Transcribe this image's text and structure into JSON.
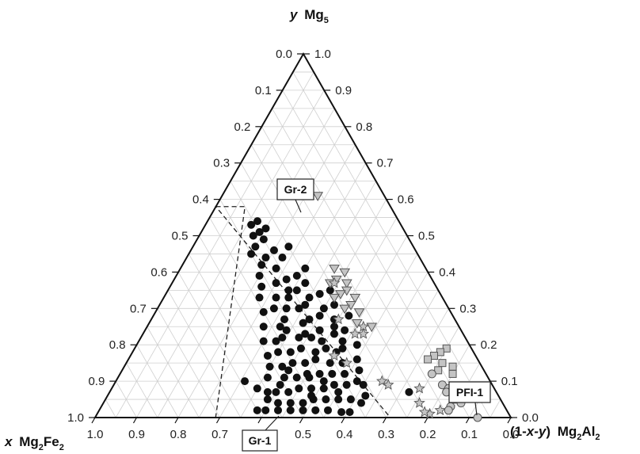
{
  "chart_data": {
    "type": "scatter",
    "subtype": "ternary",
    "axes": {
      "top": {
        "var": "y",
        "label": "Mg",
        "sub": "5"
      },
      "left": {
        "var": "x",
        "label": "Mg",
        "sub1": "2",
        "label2": "Fe",
        "sub2": "2"
      },
      "right": {
        "prefix": "(1-",
        "var": "x-y",
        "suffix": ") ",
        "label": "Mg",
        "sub1": "2",
        "label2": "Al",
        "sub2": "2"
      }
    },
    "ticks": [
      "0.0",
      "0.1",
      "0.2",
      "0.3",
      "0.4",
      "0.5",
      "0.6",
      "0.7",
      "0.8",
      "0.9",
      "1.0"
    ],
    "grid": true,
    "annotations": [
      {
        "text": "Gr-2"
      },
      {
        "text": "Gr-1"
      },
      {
        "text": "PFI-1"
      }
    ],
    "colors": {
      "group_black": "#111111",
      "group_gray_fill": "#c4c4c4",
      "group_gray_stroke": "#555555",
      "grid": "#cfcfcf",
      "frame": "#111111"
    },
    "series": [
      {
        "marker": "circle-filled",
        "color": "#111111",
        "points": [
          {
            "x": 0.36,
            "y": 0.53
          },
          {
            "x": 0.33,
            "y": 0.52
          },
          {
            "x": 0.34,
            "y": 0.54
          },
          {
            "x": 0.37,
            "y": 0.5
          },
          {
            "x": 0.35,
            "y": 0.49
          },
          {
            "x": 0.38,
            "y": 0.47
          },
          {
            "x": 0.3,
            "y": 0.47
          },
          {
            "x": 0.34,
            "y": 0.46
          },
          {
            "x": 0.37,
            "y": 0.44
          },
          {
            "x": 0.33,
            "y": 0.44
          },
          {
            "x": 0.39,
            "y": 0.42
          },
          {
            "x": 0.29,
            "y": 0.41
          },
          {
            "x": 0.36,
            "y": 0.41
          },
          {
            "x": 0.32,
            "y": 0.39
          },
          {
            "x": 0.35,
            "y": 0.38
          },
          {
            "x": 0.31,
            "y": 0.37
          },
          {
            "x": 0.38,
            "y": 0.37
          },
          {
            "x": 0.42,
            "y": 0.36
          },
          {
            "x": 0.26,
            "y": 0.35
          },
          {
            "x": 0.34,
            "y": 0.35
          },
          {
            "x": 0.29,
            "y": 0.34
          },
          {
            "x": 0.32,
            "y": 0.33
          },
          {
            "x": 0.37,
            "y": 0.33
          },
          {
            "x": 0.4,
            "y": 0.33
          },
          {
            "x": 0.44,
            "y": 0.33
          },
          {
            "x": 0.27,
            "y": 0.31
          },
          {
            "x": 0.3,
            "y": 0.3
          },
          {
            "x": 0.34,
            "y": 0.31
          },
          {
            "x": 0.36,
            "y": 0.3
          },
          {
            "x": 0.39,
            "y": 0.3
          },
          {
            "x": 0.42,
            "y": 0.3
          },
          {
            "x": 0.45,
            "y": 0.29
          },
          {
            "x": 0.25,
            "y": 0.28
          },
          {
            "x": 0.29,
            "y": 0.27
          },
          {
            "x": 0.32,
            "y": 0.28
          },
          {
            "x": 0.35,
            "y": 0.27
          },
          {
            "x": 0.37,
            "y": 0.26
          },
          {
            "x": 0.41,
            "y": 0.27
          },
          {
            "x": 0.43,
            "y": 0.25
          },
          {
            "x": 0.47,
            "y": 0.25
          },
          {
            "x": 0.28,
            "y": 0.24
          },
          {
            "x": 0.31,
            "y": 0.23
          },
          {
            "x": 0.34,
            "y": 0.24
          },
          {
            "x": 0.38,
            "y": 0.23
          },
          {
            "x": 0.4,
            "y": 0.22
          },
          {
            "x": 0.44,
            "y": 0.22
          },
          {
            "x": 0.46,
            "y": 0.21
          },
          {
            "x": 0.49,
            "y": 0.21
          },
          {
            "x": 0.27,
            "y": 0.2
          },
          {
            "x": 0.31,
            "y": 0.19
          },
          {
            "x": 0.35,
            "y": 0.19
          },
          {
            "x": 0.38,
            "y": 0.18
          },
          {
            "x": 0.41,
            "y": 0.19
          },
          {
            "x": 0.44,
            "y": 0.18
          },
          {
            "x": 0.47,
            "y": 0.18
          },
          {
            "x": 0.5,
            "y": 0.17
          },
          {
            "x": 0.29,
            "y": 0.16
          },
          {
            "x": 0.33,
            "y": 0.15
          },
          {
            "x": 0.36,
            "y": 0.15
          },
          {
            "x": 0.39,
            "y": 0.16
          },
          {
            "x": 0.42,
            "y": 0.15
          },
          {
            "x": 0.45,
            "y": 0.15
          },
          {
            "x": 0.48,
            "y": 0.14
          },
          {
            "x": 0.51,
            "y": 0.14
          },
          {
            "x": 0.3,
            "y": 0.13
          },
          {
            "x": 0.34,
            "y": 0.12
          },
          {
            "x": 0.37,
            "y": 0.12
          },
          {
            "x": 0.4,
            "y": 0.12
          },
          {
            "x": 0.43,
            "y": 0.11
          },
          {
            "x": 0.46,
            "y": 0.11
          },
          {
            "x": 0.49,
            "y": 0.11
          },
          {
            "x": 0.53,
            "y": 0.11
          },
          {
            "x": 0.21,
            "y": 0.07
          },
          {
            "x": 0.31,
            "y": 0.09
          },
          {
            "x": 0.35,
            "y": 0.09
          },
          {
            "x": 0.38,
            "y": 0.09
          },
          {
            "x": 0.41,
            "y": 0.08
          },
          {
            "x": 0.44,
            "y": 0.08
          },
          {
            "x": 0.47,
            "y": 0.08
          },
          {
            "x": 0.5,
            "y": 0.07
          },
          {
            "x": 0.53,
            "y": 0.07
          },
          {
            "x": 0.55,
            "y": 0.07
          },
          {
            "x": 0.32,
            "y": 0.06
          },
          {
            "x": 0.36,
            "y": 0.05
          },
          {
            "x": 0.39,
            "y": 0.05
          },
          {
            "x": 0.42,
            "y": 0.05
          },
          {
            "x": 0.45,
            "y": 0.05
          },
          {
            "x": 0.48,
            "y": 0.04
          },
          {
            "x": 0.51,
            "y": 0.04
          },
          {
            "x": 0.54,
            "y": 0.04
          },
          {
            "x": 0.57,
            "y": 0.08
          },
          {
            "x": 0.59,
            "y": 0.1
          },
          {
            "x": 0.43,
            "y": 0.02
          },
          {
            "x": 0.46,
            "y": 0.02
          },
          {
            "x": 0.49,
            "y": 0.02
          },
          {
            "x": 0.52,
            "y": 0.02
          },
          {
            "x": 0.55,
            "y": 0.02
          },
          {
            "x": 0.58,
            "y": 0.02
          },
          {
            "x": 0.38,
            "y": 0.015
          },
          {
            "x": 0.4,
            "y": 0.015
          },
          {
            "x": 0.34,
            "y": 0.04
          },
          {
            "x": 0.37,
            "y": 0.22
          },
          {
            "x": 0.41,
            "y": 0.39
          },
          {
            "x": 0.3,
            "y": 0.21
          },
          {
            "x": 0.33,
            "y": 0.18
          },
          {
            "x": 0.43,
            "y": 0.12
          },
          {
            "x": 0.51,
            "y": 0.09
          },
          {
            "x": 0.38,
            "y": 0.07
          },
          {
            "x": 0.45,
            "y": 0.06
          },
          {
            "x": 0.56,
            "y": 0.05
          },
          {
            "x": 0.6,
            "y": 0.02
          },
          {
            "x": 0.4,
            "y": 0.1
          },
          {
            "x": 0.47,
            "y": 0.13
          },
          {
            "x": 0.32,
            "y": 0.1
          },
          {
            "x": 0.35,
            "y": 0.21
          },
          {
            "x": 0.42,
            "y": 0.24
          },
          {
            "x": 0.3,
            "y": 0.25
          },
          {
            "x": 0.36,
            "y": 0.35
          },
          {
            "x": 0.4,
            "y": 0.45
          },
          {
            "x": 0.35,
            "y": 0.51
          }
        ]
      },
      {
        "marker": "triangle-down",
        "color": "#c4c4c4",
        "points": [
          {
            "x": 0.16,
            "y": 0.61
          },
          {
            "x": 0.22,
            "y": 0.41
          },
          {
            "x": 0.2,
            "y": 0.4
          },
          {
            "x": 0.23,
            "y": 0.38
          },
          {
            "x": 0.21,
            "y": 0.37
          },
          {
            "x": 0.25,
            "y": 0.37
          },
          {
            "x": 0.22,
            "y": 0.35
          },
          {
            "x": 0.24,
            "y": 0.34
          },
          {
            "x": 0.26,
            "y": 0.33
          },
          {
            "x": 0.21,
            "y": 0.33
          },
          {
            "x": 0.23,
            "y": 0.31
          },
          {
            "x": 0.25,
            "y": 0.3
          },
          {
            "x": 0.22,
            "y": 0.29
          },
          {
            "x": 0.24,
            "y": 0.26
          },
          {
            "x": 0.21,
            "y": 0.25
          }
        ]
      },
      {
        "marker": "star",
        "color": "#c4c4c4",
        "points": [
          {
            "x": 0.24,
            "y": 0.37
          },
          {
            "x": 0.28,
            "y": 0.27
          },
          {
            "x": 0.23,
            "y": 0.25
          },
          {
            "x": 0.26,
            "y": 0.23
          },
          {
            "x": 0.24,
            "y": 0.23
          },
          {
            "x": 0.34,
            "y": 0.17
          },
          {
            "x": 0.32,
            "y": 0.15
          },
          {
            "x": 0.26,
            "y": 0.1
          },
          {
            "x": 0.25,
            "y": 0.09
          },
          {
            "x": 0.18,
            "y": 0.08
          },
          {
            "x": 0.2,
            "y": 0.04
          },
          {
            "x": 0.19,
            "y": 0.01
          },
          {
            "x": 0.2,
            "y": 0.015
          },
          {
            "x": 0.16,
            "y": 0.02
          }
        ]
      },
      {
        "marker": "square",
        "color": "#c4c4c4",
        "points": [
          {
            "x": 0.06,
            "y": 0.19
          },
          {
            "x": 0.08,
            "y": 0.18
          },
          {
            "x": 0.1,
            "y": 0.17
          },
          {
            "x": 0.12,
            "y": 0.16
          },
          {
            "x": 0.09,
            "y": 0.15
          },
          {
            "x": 0.07,
            "y": 0.14
          },
          {
            "x": 0.11,
            "y": 0.13
          },
          {
            "x": 0.08,
            "y": 0.12
          }
        ]
      },
      {
        "marker": "circle-open",
        "color": "#c4c4c4",
        "points": [
          {
            "x": 0.13,
            "y": 0.12
          },
          {
            "x": 0.12,
            "y": 0.09
          },
          {
            "x": 0.11,
            "y": 0.08
          },
          {
            "x": 0.12,
            "y": 0.07
          },
          {
            "x": 0.11,
            "y": 0.05
          },
          {
            "x": 0.13,
            "y": 0.03
          },
          {
            "x": 0.14,
            "y": 0.02
          },
          {
            "x": 0.03,
            "y": 0.08
          },
          {
            "x": 0.08,
            "y": 0.0
          },
          {
            "x": 0.1,
            "y": 0.04
          }
        ]
      }
    ],
    "regions": [
      {
        "style": "dashed",
        "polygon": [
          {
            "x": 0.42,
            "y": 0.58
          },
          {
            "x": 0.35,
            "y": 0.58
          },
          {
            "x": 0.71,
            "y": 0.0
          },
          {
            "x": 0.29,
            "y": 0.0
          }
        ]
      }
    ]
  }
}
